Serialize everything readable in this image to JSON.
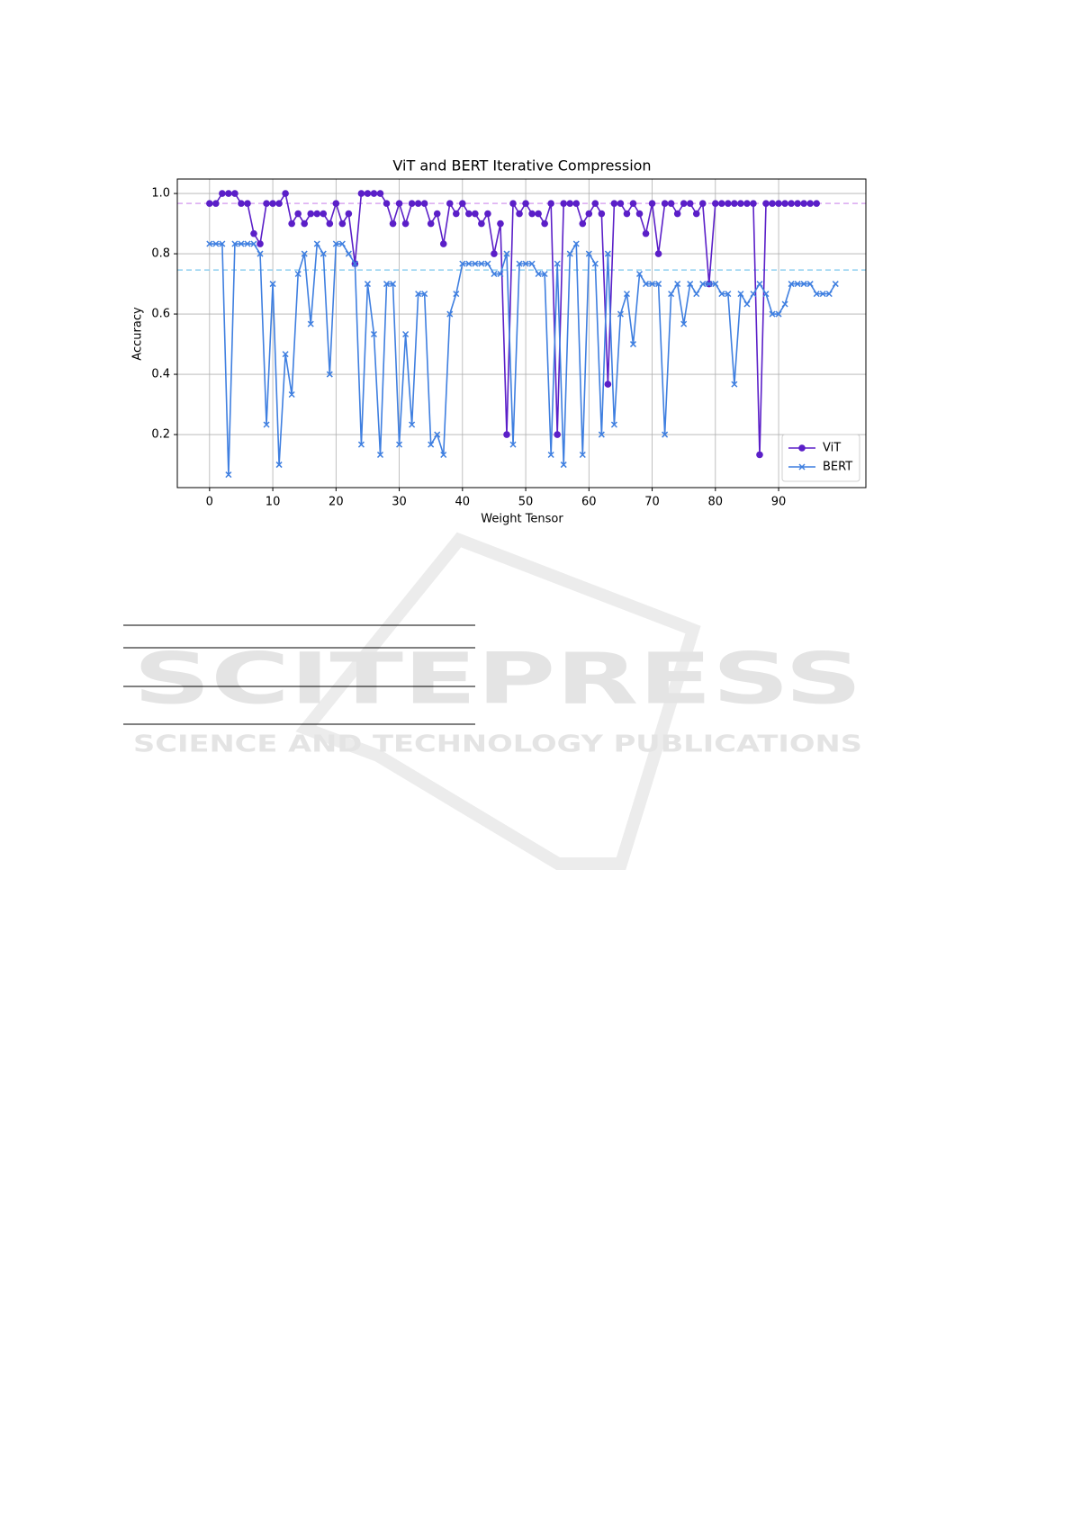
{
  "chart_data": {
    "type": "line",
    "title": "ViT and BERT Iterative Compression",
    "xlabel": "Weight Tensor",
    "ylabel": "Accuracy",
    "x": [
      0,
      1,
      2,
      3,
      4,
      5,
      6,
      7,
      8,
      9,
      10,
      11,
      12,
      13,
      14,
      15,
      16,
      17,
      18,
      19,
      20,
      21,
      22,
      23,
      24,
      25,
      26,
      27,
      28,
      29,
      30,
      31,
      32,
      33,
      34,
      35,
      36,
      37,
      38,
      39,
      40,
      41,
      42,
      43,
      44,
      45,
      46,
      47,
      48,
      49,
      50,
      51,
      52,
      53,
      54,
      55,
      56,
      57,
      58,
      59,
      60,
      61,
      62,
      63,
      64,
      65,
      66,
      67,
      68,
      69,
      70,
      71,
      72,
      73,
      74,
      75,
      76,
      77,
      78,
      79,
      80,
      81,
      82,
      83,
      84,
      85,
      86,
      87,
      88,
      89,
      90,
      91,
      92,
      93,
      94,
      95,
      96,
      97,
      98,
      99
    ],
    "series": [
      {
        "name": "ViT",
        "color": "#5b1fc8",
        "marker": "circle",
        "values": [
          0.967,
          0.967,
          1.0,
          1.0,
          1.0,
          0.967,
          0.967,
          0.867,
          0.833,
          0.967,
          0.967,
          0.967,
          1.0,
          0.9,
          0.933,
          0.9,
          0.933,
          0.933,
          0.933,
          0.9,
          0.967,
          0.9,
          0.933,
          0.767,
          1.0,
          1.0,
          1.0,
          1.0,
          0.967,
          0.9,
          0.967,
          0.9,
          0.967,
          0.967,
          0.967,
          0.9,
          0.933,
          0.833,
          0.967,
          0.933,
          0.967,
          0.933,
          0.933,
          0.9,
          0.933,
          0.8,
          0.9,
          0.2,
          0.967,
          0.933,
          0.967,
          0.933,
          0.933,
          0.9,
          0.967,
          0.2,
          0.967,
          0.967,
          0.967,
          0.9,
          0.933,
          0.967,
          0.933,
          0.367,
          0.967,
          0.967,
          0.933,
          0.967,
          0.933,
          0.867,
          0.967,
          0.8,
          0.967,
          0.967,
          0.933,
          0.967,
          0.967,
          0.933,
          0.967,
          0.7,
          0.967,
          0.967,
          0.967,
          0.967,
          0.967,
          0.967,
          0.967,
          0.133,
          0.967,
          0.967,
          0.967,
          0.967,
          0.967,
          0.967,
          0.967,
          0.967,
          0.967,
          null,
          null,
          null
        ]
      },
      {
        "name": "BERT",
        "color": "#3f7fe0",
        "marker": "x",
        "values": [
          0.833,
          0.833,
          0.833,
          0.067,
          0.833,
          0.833,
          0.833,
          0.833,
          0.8,
          0.233,
          0.7,
          0.1,
          0.467,
          0.333,
          0.733,
          0.8,
          0.567,
          0.833,
          0.8,
          0.4,
          0.833,
          0.833,
          0.8,
          0.767,
          0.167,
          0.7,
          0.533,
          0.133,
          0.7,
          0.7,
          0.167,
          0.533,
          0.233,
          0.667,
          0.667,
          0.167,
          0.2,
          0.133,
          0.6,
          0.667,
          0.767,
          0.767,
          0.767,
          0.767,
          0.767,
          0.733,
          0.733,
          0.8,
          0.167,
          0.767,
          0.767,
          0.767,
          0.733,
          0.733,
          0.133,
          0.767,
          0.1,
          0.8,
          0.833,
          0.133,
          0.8,
          0.767,
          0.2,
          0.8,
          0.233,
          0.6,
          0.667,
          0.5,
          0.733,
          0.7,
          0.7,
          0.7,
          0.2,
          0.667,
          0.7,
          0.567,
          0.7,
          0.667,
          0.7,
          0.7,
          0.7,
          0.667,
          0.667,
          0.367,
          0.667,
          0.633,
          0.667,
          0.7,
          0.667,
          0.6,
          0.6,
          0.633,
          0.7,
          0.7,
          0.7,
          0.7,
          0.667,
          0.667,
          0.667,
          0.7
        ]
      }
    ],
    "hlines": [
      {
        "value": 0.967,
        "color": "#d9a8f0"
      },
      {
        "value": 0.746,
        "color": "#90d0f0"
      }
    ],
    "xlim": [
      -5.1,
      103.8
    ],
    "ylim": [
      0.024,
      1.048
    ],
    "xticks": [
      0,
      10,
      20,
      30,
      40,
      50,
      60,
      70,
      80,
      90
    ],
    "yticks": [
      0.2,
      0.4,
      0.6,
      0.8,
      {
        "value": 1,
        "label": "1.0"
      }
    ],
    "grid": true,
    "legend": "lower right"
  },
  "watermark": {
    "title": "SCITEPRESS",
    "subtitle": "SCIENCE AND TECHNOLOGY PUBLICATIONS"
  }
}
